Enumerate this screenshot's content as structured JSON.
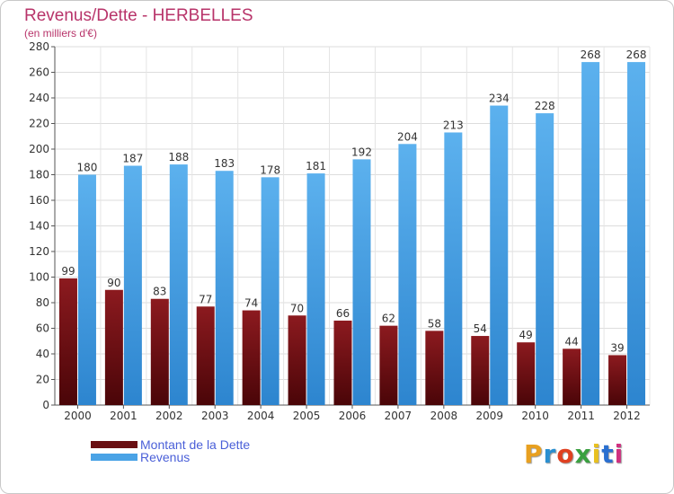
{
  "chart_data": {
    "type": "bar",
    "title": "Revenus/Dette - HERBELLES",
    "subtitle": "(en milliers d'€)",
    "categories": [
      "2000",
      "2001",
      "2002",
      "2003",
      "2004",
      "2005",
      "2006",
      "2007",
      "2008",
      "2009",
      "2010",
      "2011",
      "2012"
    ],
    "series": [
      {
        "name": "Montant de la Dette",
        "color": "#7a1418",
        "values": [
          99,
          90,
          83,
          77,
          74,
          70,
          66,
          62,
          58,
          54,
          49,
          44,
          39
        ]
      },
      {
        "name": "Revenus",
        "color": "#4aa3e6",
        "values": [
          180,
          187,
          188,
          183,
          178,
          181,
          192,
          204,
          213,
          234,
          228,
          268,
          268
        ]
      }
    ],
    "ylim": [
      0,
      280
    ],
    "yticks": [
      0,
      20,
      40,
      60,
      80,
      100,
      120,
      140,
      160,
      180,
      200,
      220,
      240,
      260,
      280
    ],
    "grid": true,
    "legend": "bottom-left"
  },
  "logo": {
    "text": "Proxiti",
    "colors": [
      "#e8a020",
      "#2a8fd0",
      "#e04020",
      "#3aa040",
      "#e8c020",
      "#2a6fd0",
      "#d03080"
    ]
  }
}
